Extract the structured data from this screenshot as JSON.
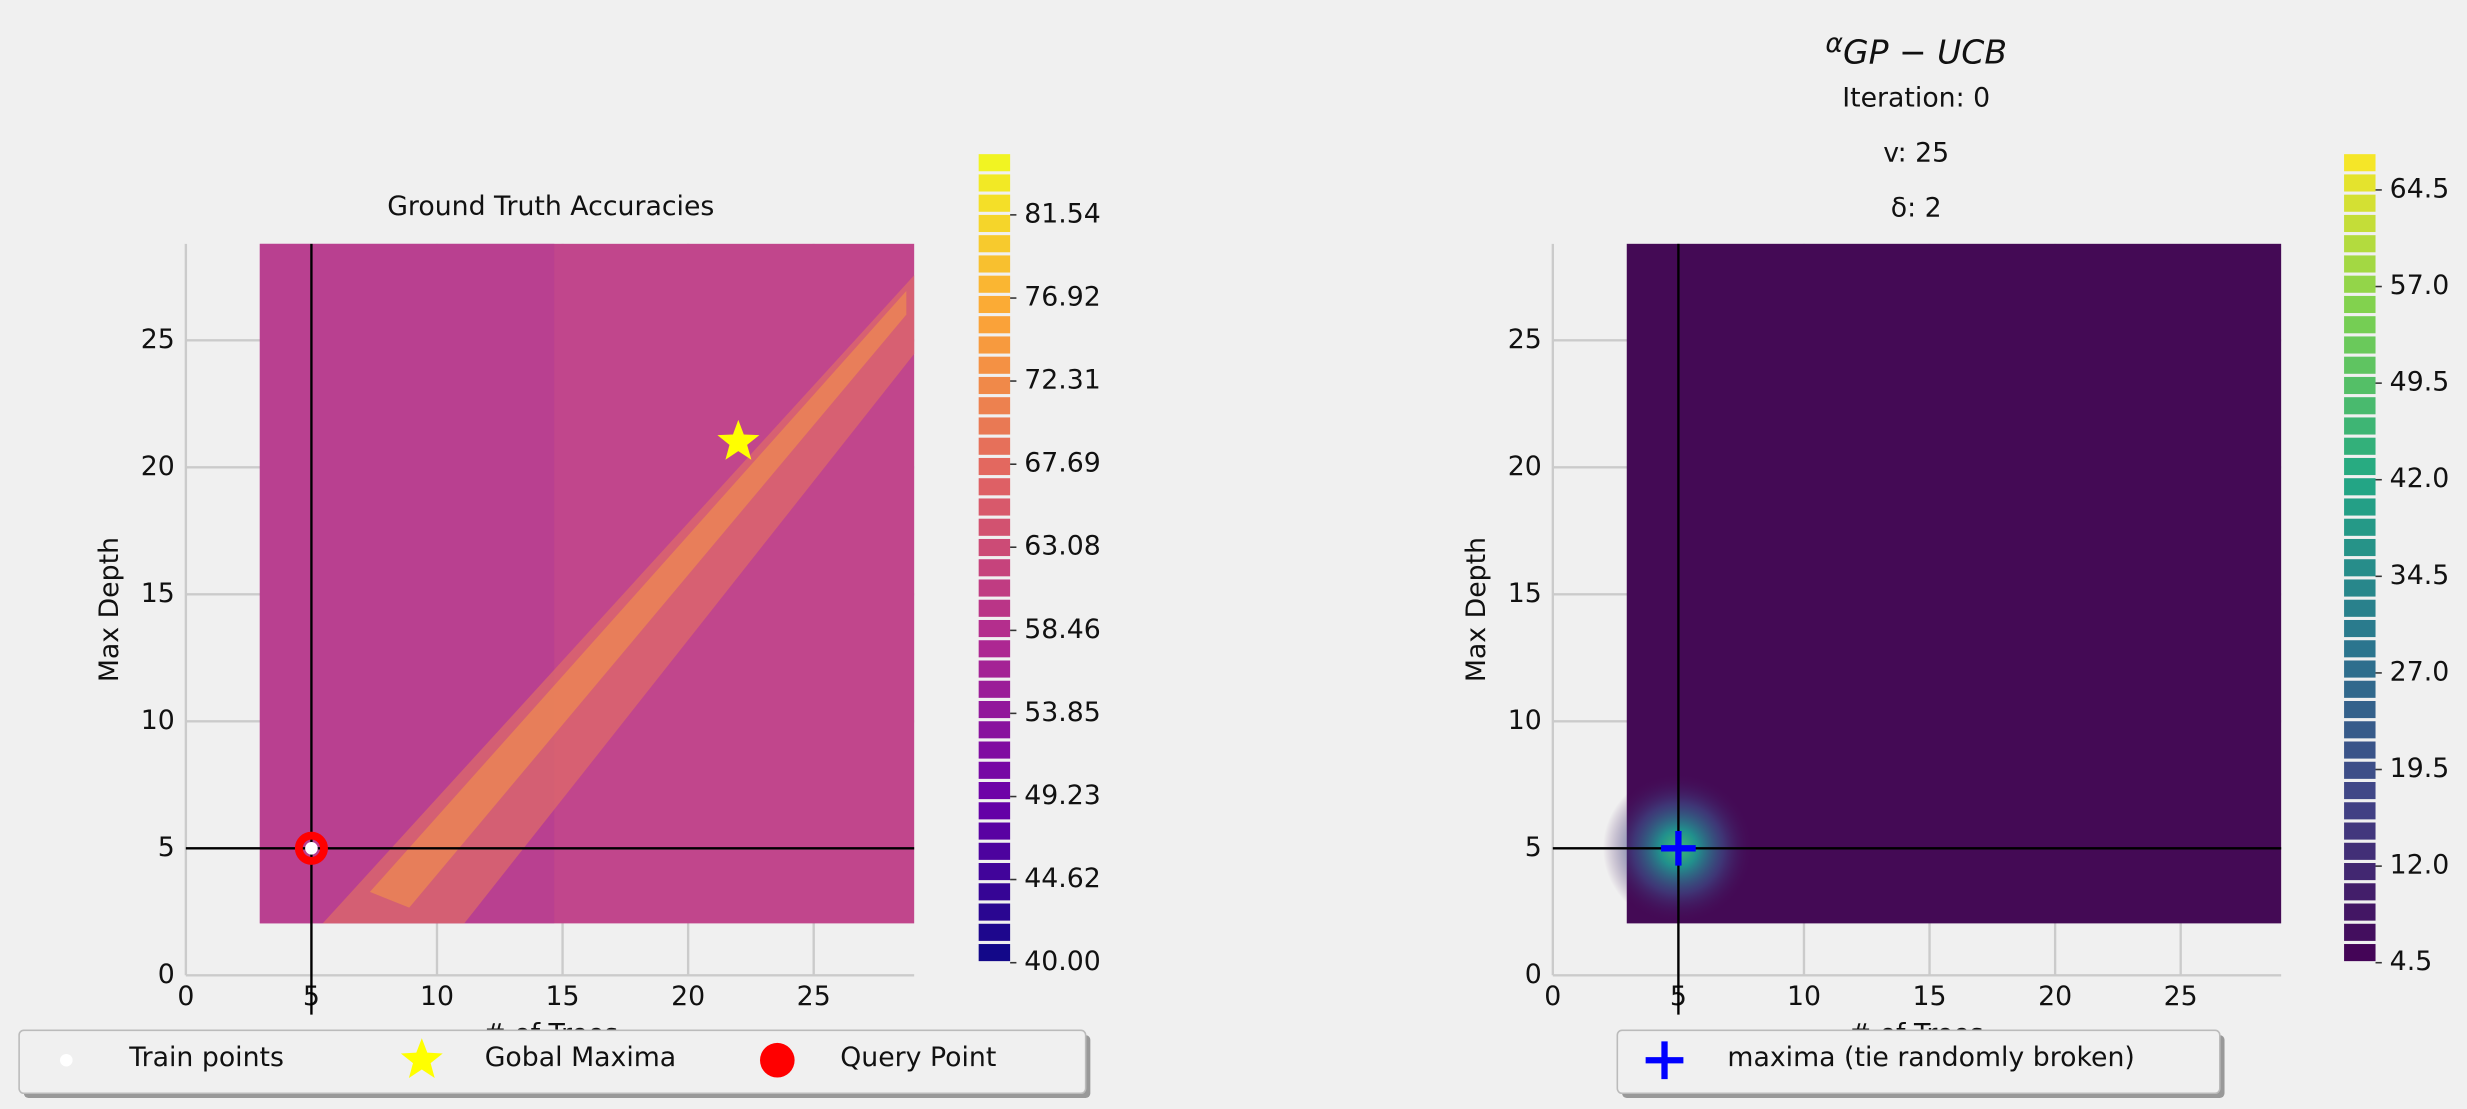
{
  "chart_data": [
    {
      "type": "heatmap",
      "title": "Ground Truth Accuracies",
      "xlabel": "# of Trees",
      "ylabel": "Max Depth",
      "xlim": [
        0,
        29
      ],
      "ylim": [
        0,
        28.8
      ],
      "xticks": [
        0,
        5,
        10,
        15,
        20,
        25
      ],
      "yticks": [
        0,
        5,
        10,
        15,
        20,
        25
      ],
      "colorbar": {
        "colormap": "plasma",
        "clim": [
          40,
          85
        ],
        "ticks": [
          {
            "value": 40,
            "label": "40.00"
          },
          44.62,
          49.23,
          53.85,
          58.46,
          63.08,
          67.69,
          72.31,
          76.92,
          81.54
        ]
      },
      "crosshair": true,
      "series": [
        {
          "name": "Train points",
          "marker": "circle",
          "color": "#ffffff",
          "x": [
            5
          ],
          "y": [
            5
          ]
        },
        {
          "name": "Gobal Maxima",
          "marker": "star",
          "color": "#ffff00",
          "x": [
            22
          ],
          "y": [
            21
          ]
        },
        {
          "name": "Query Point",
          "marker": "ring",
          "color": "#ff0000",
          "x": [
            5
          ],
          "y": [
            5
          ]
        }
      ]
    },
    {
      "type": "heatmap",
      "title_lines": [
        {
          "symbol": "α",
          "subscript": "GP − UCB"
        },
        "Iteration: 0",
        "v: 25",
        "δ: 2"
      ],
      "xlabel": "# of Trees",
      "ylabel": "Max Depth",
      "xlim": [
        0,
        29
      ],
      "ylim": [
        0,
        28.8
      ],
      "xticks": [
        0,
        5,
        10,
        15,
        20,
        25
      ],
      "yticks": [
        0,
        5,
        10,
        15,
        20,
        25
      ],
      "colorbar": {
        "colormap": "viridis",
        "clim": [
          4.5,
          67.4
        ],
        "ticks": [
          4.5,
          {
            "value": 12,
            "label": "12.0"
          },
          19.5,
          {
            "value": 27,
            "label": "27.0"
          },
          34.5,
          {
            "value": 42,
            "label": "42.0"
          },
          49.5,
          {
            "value": 57,
            "label": "57.0"
          },
          64.5
        ]
      },
      "crosshair": true,
      "series": [
        {
          "name": "maxima (tie randomly broken)",
          "marker": "plus",
          "color": "#0000ff",
          "x": [
            5
          ],
          "y": [
            5
          ]
        }
      ]
    }
  ]
}
